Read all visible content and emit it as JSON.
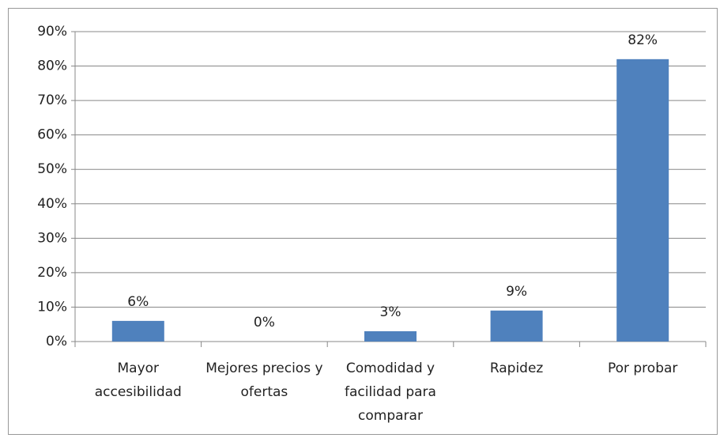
{
  "chart_data": {
    "type": "bar",
    "categories": [
      "Mayor accesibilidad",
      "Mejores precios y ofertas",
      "Comodidad y facilidad para comparar",
      "Rapidez",
      "Por probar"
    ],
    "values": [
      6,
      0,
      3,
      9,
      82
    ],
    "value_labels": [
      "6%",
      "0%",
      "3%",
      "9%",
      "82%"
    ],
    "color": "#4f81bd",
    "ylim": [
      0,
      90
    ],
    "yticks": [
      {
        "value": 0,
        "label": "0%"
      },
      {
        "value": 10,
        "label": "10%"
      },
      {
        "value": 20,
        "label": "20%"
      },
      {
        "value": 30,
        "label": "30%"
      },
      {
        "value": 40,
        "label": "40%"
      },
      {
        "value": 50,
        "label": "50%"
      },
      {
        "value": 60,
        "label": "60%"
      },
      {
        "value": 70,
        "label": "70%"
      },
      {
        "value": 80,
        "label": "80%"
      },
      {
        "value": 90,
        "label": "90%"
      }
    ],
    "grid": true
  }
}
